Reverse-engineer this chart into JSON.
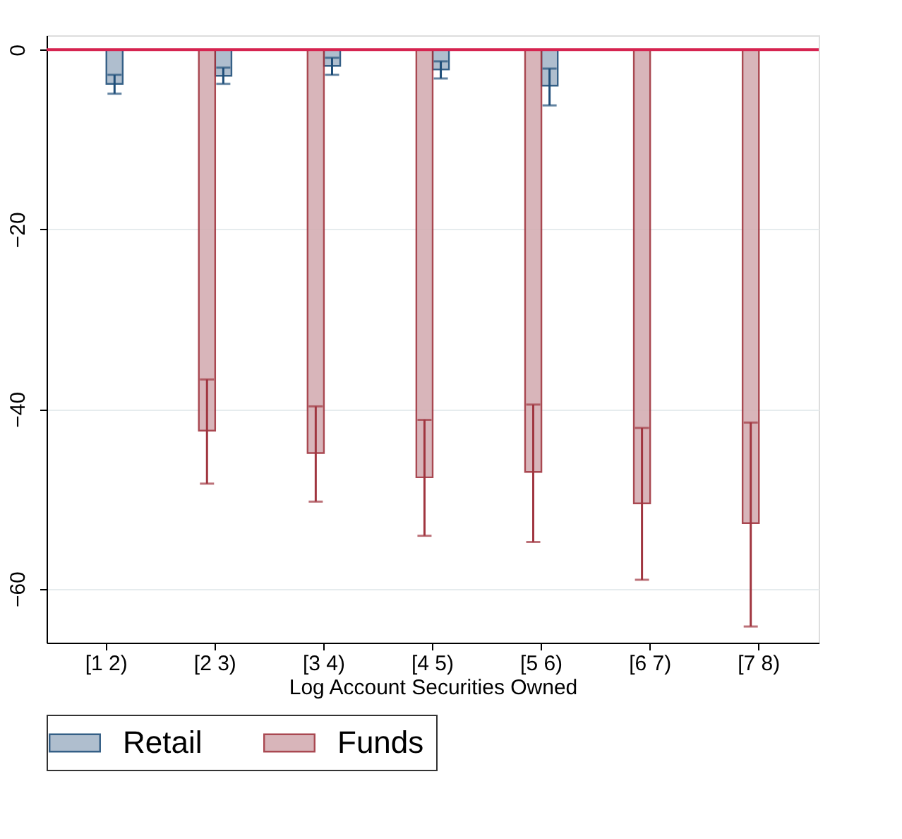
{
  "chart_data": {
    "type": "bar",
    "xlabel": "Log Account Securities Owned",
    "categories": [
      "[1 2)",
      "[2 3)",
      "[3 4)",
      "[4 5)",
      "[5 6)",
      "[6 7)",
      "[7 8)"
    ],
    "series": [
      {
        "name": "Retail",
        "color": "#a7b7c9",
        "values": [
          -3.8,
          -2.9,
          -1.8,
          -2.2,
          -4.0,
          null,
          null
        ],
        "errors": [
          [
            -4.9,
            -2.8
          ],
          [
            -3.8,
            -2.0
          ],
          [
            -2.8,
            -0.9
          ],
          [
            -3.2,
            -1.3
          ],
          [
            -6.2,
            -2.1
          ],
          null,
          null
        ]
      },
      {
        "name": "Funds",
        "color": "#d4aeb3",
        "values": [
          null,
          -42.4,
          -44.9,
          -47.6,
          -47.0,
          -50.5,
          -52.7
        ],
        "errors": [
          null,
          [
            -48.3,
            -36.7
          ],
          [
            -50.3,
            -39.7
          ],
          [
            -54.1,
            -41.2
          ],
          [
            -54.8,
            -39.5
          ],
          [
            -59.0,
            -42.1
          ],
          [
            -64.2,
            -41.5
          ]
        ]
      }
    ],
    "ylim": [
      -66,
      1.6
    ],
    "yticks": [
      -60,
      -40,
      -20,
      0
    ],
    "grid": "y",
    "legend": "bottom",
    "ref_lines": [
      {
        "axis": "y",
        "value": 0,
        "color": "#d6234f"
      }
    ]
  }
}
